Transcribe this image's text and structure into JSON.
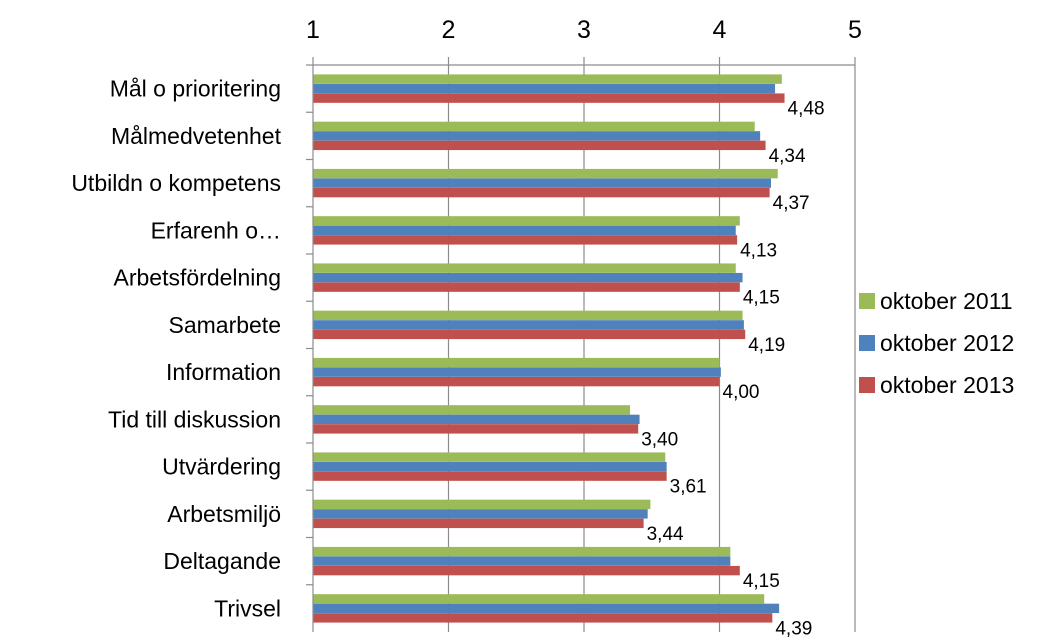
{
  "chart_data": {
    "type": "bar",
    "orientation": "horizontal",
    "xlim": [
      1,
      5
    ],
    "x_ticks": [
      "1",
      "2",
      "3",
      "4",
      "5"
    ],
    "grid": true,
    "legend_position": "right",
    "categories": [
      "Mål o prioritering",
      "Målmedvetenhet",
      "Utbildn o kompetens",
      "Erfarenh o…",
      "Arbetsfördelning",
      "Samarbete",
      "Information",
      "Tid till diskussion",
      "Utvärdering",
      "Arbetsmiljö",
      "Deltagande",
      "Trivsel"
    ],
    "series": [
      {
        "name": "oktober 2011",
        "color": "#9bbb59",
        "values": [
          4.46,
          4.26,
          4.43,
          4.15,
          4.12,
          4.17,
          4.0,
          3.34,
          3.6,
          3.49,
          4.08,
          4.33
        ]
      },
      {
        "name": "oktober 2012",
        "color": "#4f81bd",
        "values": [
          4.41,
          4.3,
          4.38,
          4.12,
          4.17,
          4.18,
          4.01,
          3.41,
          3.61,
          3.47,
          4.08,
          4.44
        ]
      },
      {
        "name": "oktober 2013",
        "color": "#c0504d",
        "values": [
          4.48,
          4.34,
          4.37,
          4.13,
          4.15,
          4.19,
          4.0,
          3.4,
          3.61,
          3.44,
          4.15,
          4.39
        ]
      }
    ],
    "data_labels": [
      "4,48",
      "4,34",
      "4,37",
      "4,13",
      "4,15",
      "4,19",
      "4,00",
      "3,40",
      "3,61",
      "3,44",
      "4,15",
      "4,39"
    ]
  }
}
